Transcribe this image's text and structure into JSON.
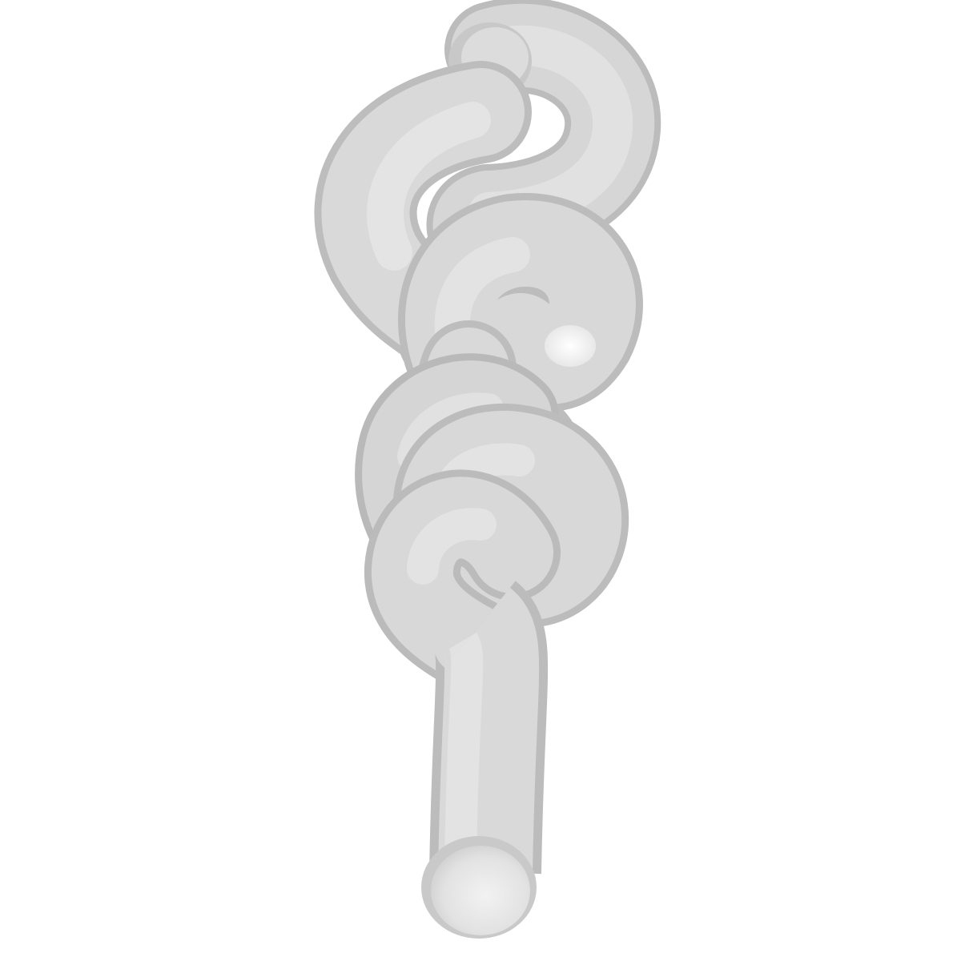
{
  "scene": {
    "subject": "knotted-tube",
    "background_color": "#ffffff",
    "tube_color": "#d9d9d9",
    "highlight_color": "#f4f4f4",
    "shadow_color": "#b4b4b4",
    "end_cap_color": "#e6e6e6"
  }
}
